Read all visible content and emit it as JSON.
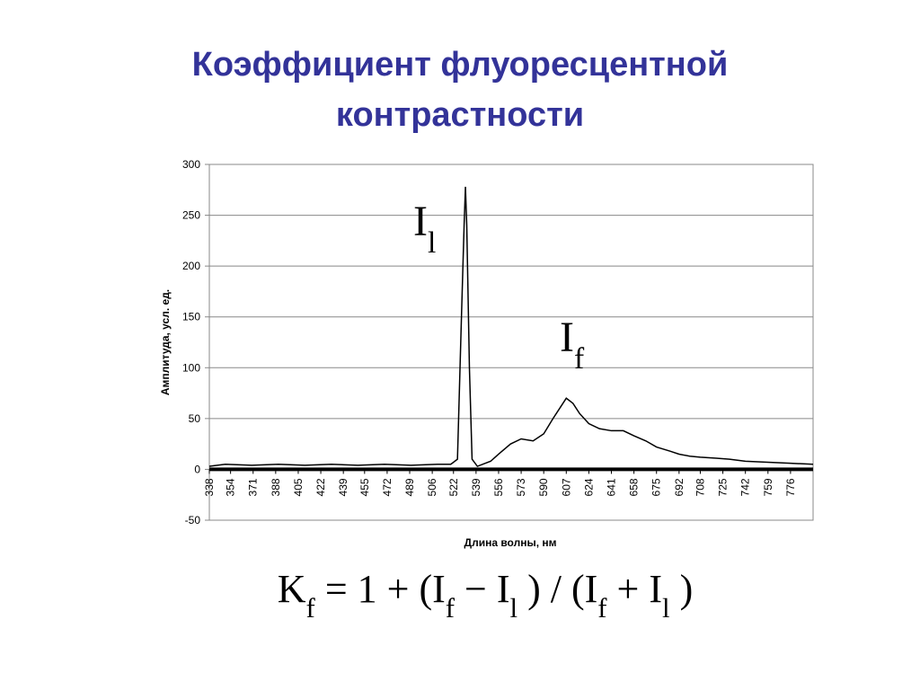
{
  "chart_data": {
    "type": "line",
    "title": [
      "Коэффициент флуоресцентной",
      "контрастности"
    ],
    "x_label": "Длина волны, нм",
    "y_label": "Амплитуда, усл. ед.",
    "x": [
      338,
      350,
      370,
      390,
      410,
      430,
      450,
      470,
      490,
      510,
      520,
      525,
      528,
      530,
      531,
      532,
      534,
      536,
      540,
      550,
      556,
      565,
      573,
      582,
      590,
      597,
      603,
      607,
      612,
      617,
      624,
      632,
      641,
      650,
      658,
      667,
      675,
      685,
      692,
      700,
      708,
      720,
      730,
      742,
      759,
      776,
      793
    ],
    "values": [
      3,
      5,
      4,
      5,
      4,
      5,
      4,
      5,
      4,
      5,
      5,
      10,
      150,
      240,
      278,
      240,
      100,
      10,
      3,
      8,
      15,
      25,
      30,
      28,
      35,
      50,
      62,
      70,
      65,
      55,
      45,
      40,
      38,
      38,
      33,
      28,
      22,
      18,
      15,
      13,
      12,
      11,
      10,
      8,
      7,
      6,
      5
    ],
    "color": "#000000",
    "xlim": [
      338,
      793
    ],
    "xticks": [
      338,
      354,
      371,
      388,
      405,
      422,
      439,
      455,
      472,
      489,
      506,
      522,
      539,
      556,
      573,
      590,
      607,
      624,
      641,
      658,
      675,
      692,
      708,
      725,
      742,
      759,
      776
    ],
    "ylim": [
      -50,
      300
    ],
    "yticks": [
      -50,
      0,
      50,
      100,
      150,
      200,
      250,
      300
    ],
    "grid": true,
    "annotations": [
      {
        "text": "I",
        "sub": "l"
      },
      {
        "text": "I",
        "sub": "f"
      }
    ],
    "formula": [
      {
        "text": "K",
        "sub": "f"
      },
      {
        "text": " = 1 + ("
      },
      {
        "text": "I",
        "sub": "f"
      },
      {
        "text": " − "
      },
      {
        "text": "I",
        "sub": "l"
      },
      {
        "text": " ) / ("
      },
      {
        "text": "I",
        "sub": "f"
      },
      {
        "text": " + "
      },
      {
        "text": "I",
        "sub": "l"
      },
      {
        "text": " )"
      }
    ]
  }
}
